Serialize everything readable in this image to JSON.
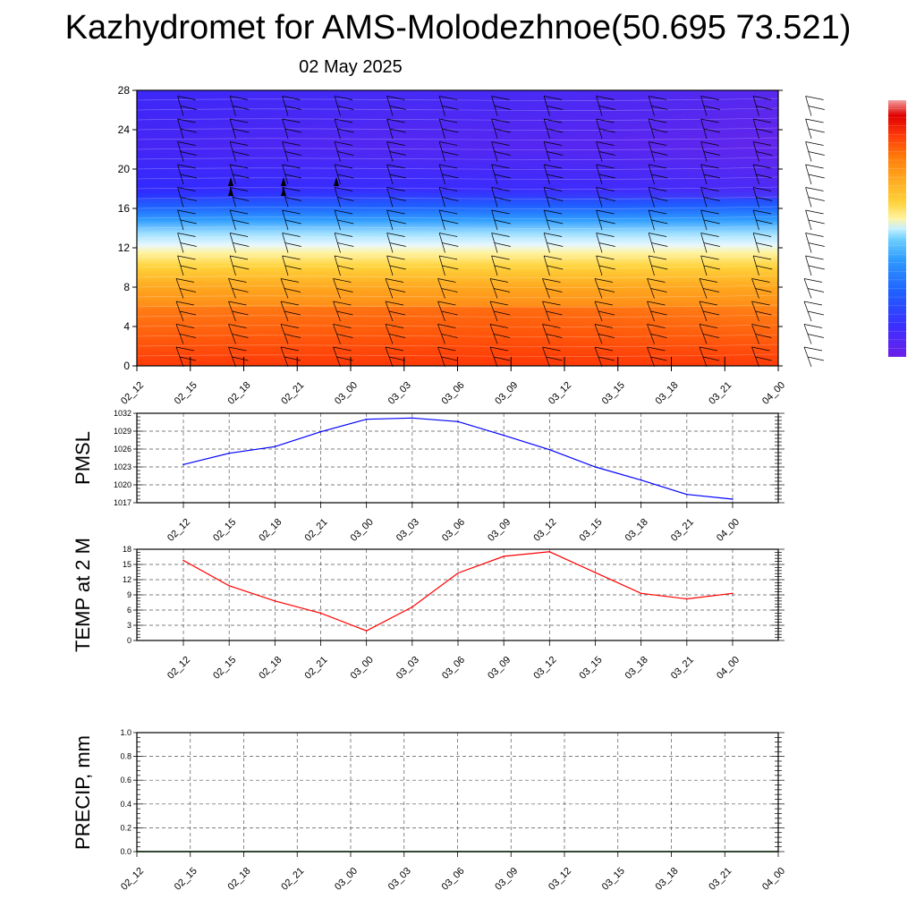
{
  "header": {
    "title": "Kazhydromet for AMS-Molodezhnoe(50.695 73.521)",
    "date": "02 May 2025"
  },
  "colors": {
    "pmsl_line": "#0000ff",
    "temp_line": "#ff0000",
    "precip_line": "#006400"
  },
  "chart_data": [
    {
      "type": "heatmap",
      "title": "",
      "description_key": "vertical profile cross-section with wind barbs",
      "x_categories": [
        "02_12",
        "02_15",
        "02_18",
        "02_21",
        "03_00",
        "03_03",
        "03_06",
        "03_09",
        "03_12",
        "03_15",
        "03_18",
        "03_21",
        "04_00"
      ],
      "ylim": [
        0,
        28
      ],
      "yticks": [
        "0",
        "4",
        "8",
        "12",
        "16",
        "20",
        "24",
        "28"
      ],
      "colorbar": [
        "#6d1fe8",
        "#3b2fff",
        "#1f5fff",
        "#2f9cff",
        "#6fd0ff",
        "#c8f0ff",
        "#fff3a0",
        "#ffd23a",
        "#ffa51e",
        "#ff7a0a",
        "#ff3c0a",
        "#e00000",
        "#f26c6c"
      ]
    },
    {
      "type": "line",
      "ylabel": "PMSL",
      "x": [
        "02_12",
        "02_15",
        "02_18",
        "02_21",
        "03_00",
        "03_03",
        "03_06",
        "03_09",
        "03_12",
        "03_15",
        "03_18",
        "03_21",
        "04_00"
      ],
      "ylim": [
        1017,
        1032
      ],
      "yticks": [
        "1017",
        "1020",
        "1023",
        "1026",
        "1029",
        "1032"
      ],
      "values": [
        1023.4,
        1025.3,
        1026.4,
        1028.9,
        1031.0,
        1031.2,
        1030.6,
        1028.3,
        1025.9,
        1023.0,
        1020.8,
        1018.4,
        1017.6
      ]
    },
    {
      "type": "line",
      "ylabel": "TEMP at 2 M",
      "x": [
        "02_12",
        "02_15",
        "02_18",
        "02_21",
        "03_00",
        "03_03",
        "03_06",
        "03_09",
        "03_12",
        "03_15",
        "03_18",
        "03_21",
        "04_00"
      ],
      "ylim": [
        0,
        18
      ],
      "yticks": [
        "0",
        "3",
        "6",
        "9",
        "12",
        "15",
        "18"
      ],
      "values": [
        15.8,
        10.8,
        7.8,
        5.4,
        1.9,
        6.6,
        13.3,
        16.6,
        17.5,
        13.4,
        9.3,
        8.2,
        9.3
      ]
    },
    {
      "type": "line",
      "ylabel": "PRECIP, mm",
      "x": [
        "02_12",
        "02_15",
        "02_18",
        "02_21",
        "03_00",
        "03_03",
        "03_06",
        "03_09",
        "03_12",
        "03_15",
        "03_18",
        "03_21",
        "04_00"
      ],
      "ylim": [
        0,
        1.0
      ],
      "yticks": [
        "0.0",
        "0.2",
        "0.4",
        "0.6",
        "0.8",
        "1.0"
      ],
      "values": [
        0,
        0,
        0,
        0,
        0,
        0,
        0,
        0,
        0,
        0,
        0,
        0,
        0
      ]
    }
  ]
}
